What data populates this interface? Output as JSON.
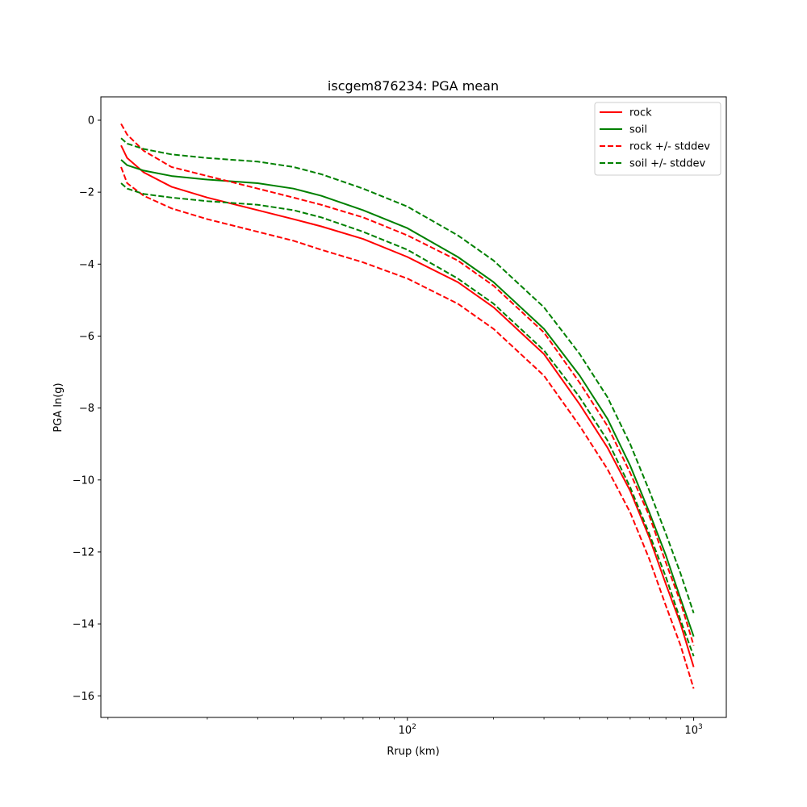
{
  "chart_data": {
    "type": "line",
    "title": "iscgem876234: PGA mean",
    "xlabel": "Rrup (km)",
    "ylabel": "PGA ln(g)",
    "xscale": "log",
    "xlim": [
      8.5,
      1300
    ],
    "ylim": [
      -16.6,
      0.65
    ],
    "x_ticks": [
      {
        "value": 100,
        "base": "10",
        "exp": "2"
      },
      {
        "value": 1000,
        "base": "10",
        "exp": "3"
      }
    ],
    "y_ticks": [
      0,
      -2,
      -4,
      -6,
      -8,
      -10,
      -12,
      -14,
      -16
    ],
    "grid": false,
    "legend": "top-right",
    "colors": {
      "rock": "#ff0000",
      "soil": "#008000"
    },
    "x": [
      10,
      10.5,
      12,
      15,
      20,
      30,
      40,
      50,
      70,
      100,
      150,
      200,
      300,
      400,
      500,
      600,
      700,
      800,
      900,
      1000
    ],
    "series": [
      {
        "name": "rock",
        "color": "#ff0000",
        "dash": "solid",
        "values": [
          -0.7,
          -1.05,
          -1.45,
          -1.85,
          -2.15,
          -2.5,
          -2.75,
          -2.95,
          -3.3,
          -3.8,
          -4.5,
          -5.2,
          -6.5,
          -7.9,
          -9.1,
          -10.3,
          -11.6,
          -12.9,
          -14.0,
          -15.2
        ]
      },
      {
        "name": "soil",
        "color": "#008000",
        "dash": "solid",
        "values": [
          -1.1,
          -1.25,
          -1.4,
          -1.55,
          -1.65,
          -1.75,
          -1.9,
          -2.1,
          -2.5,
          -3.0,
          -3.8,
          -4.5,
          -5.8,
          -7.1,
          -8.3,
          -9.6,
          -10.9,
          -12.1,
          -13.3,
          -14.35
        ]
      },
      {
        "name": "rock +/- stddev",
        "color": "#ff0000",
        "dash": "dashed",
        "values": [
          -0.1,
          -0.4,
          -0.85,
          -1.3,
          -1.55,
          -1.9,
          -2.15,
          -2.35,
          -2.7,
          -3.2,
          -3.9,
          -4.6,
          -5.9,
          -7.3,
          -8.5,
          -9.8,
          -11.0,
          -12.3,
          -13.4,
          -14.6
        ]
      },
      {
        "name": "",
        "color": "#ff0000",
        "dash": "dashed",
        "values": [
          -1.3,
          -1.75,
          -2.1,
          -2.45,
          -2.75,
          -3.1,
          -3.35,
          -3.6,
          -3.95,
          -4.4,
          -5.1,
          -5.8,
          -7.1,
          -8.5,
          -9.7,
          -10.9,
          -12.2,
          -13.5,
          -14.6,
          -15.8
        ]
      },
      {
        "name": "soil +/- stddev",
        "color": "#008000",
        "dash": "dashed",
        "values": [
          -0.5,
          -0.65,
          -0.8,
          -0.95,
          -1.05,
          -1.15,
          -1.3,
          -1.5,
          -1.9,
          -2.4,
          -3.2,
          -3.9,
          -5.2,
          -6.5,
          -7.7,
          -9.0,
          -10.3,
          -11.5,
          -12.6,
          -13.7
        ]
      },
      {
        "name": "",
        "color": "#008000",
        "dash": "dashed",
        "values": [
          -1.75,
          -1.9,
          -2.05,
          -2.15,
          -2.25,
          -2.35,
          -2.5,
          -2.7,
          -3.1,
          -3.6,
          -4.4,
          -5.1,
          -6.4,
          -7.7,
          -8.9,
          -10.2,
          -11.5,
          -12.7,
          -13.9,
          -14.9
        ]
      }
    ]
  }
}
